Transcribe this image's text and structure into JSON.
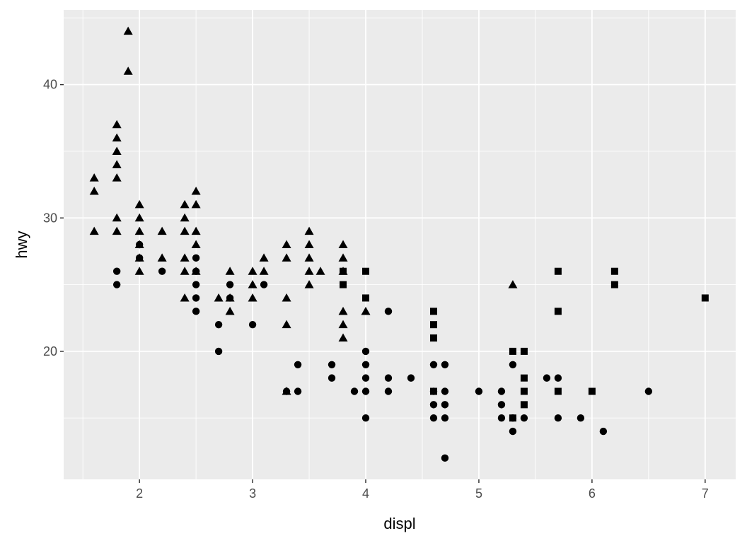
{
  "chart_data": {
    "type": "scatter",
    "title": "",
    "xlabel": "displ",
    "ylabel": "hwy",
    "xlim": [
      1.33,
      7.27
    ],
    "ylim": [
      10.4,
      45.6
    ],
    "x_ticks": [
      2,
      3,
      4,
      5,
      6,
      7
    ],
    "y_ticks": [
      20,
      30,
      40
    ],
    "grid": true,
    "legend": "none",
    "colors": {
      "panel": "#ebebeb",
      "grid": "#ffffff",
      "point": "#000000"
    },
    "shape_legend": {
      "circle": "4",
      "triangle": "f",
      "square": "r"
    },
    "series": [
      {
        "shape": "circle",
        "points": [
          [
            1.8,
            26
          ],
          [
            1.8,
            25
          ],
          [
            2.0,
            28
          ],
          [
            2.0,
            27
          ],
          [
            2.2,
            26
          ],
          [
            2.5,
            27
          ],
          [
            2.5,
            26
          ],
          [
            2.5,
            25
          ],
          [
            2.5,
            24
          ],
          [
            2.5,
            23
          ],
          [
            2.7,
            22
          ],
          [
            2.7,
            20
          ],
          [
            2.8,
            25
          ],
          [
            2.8,
            24
          ],
          [
            3.0,
            22
          ],
          [
            3.1,
            25
          ],
          [
            3.3,
            17
          ],
          [
            3.4,
            19
          ],
          [
            3.4,
            17
          ],
          [
            3.7,
            19
          ],
          [
            3.7,
            18
          ],
          [
            3.9,
            17
          ],
          [
            4.0,
            20
          ],
          [
            4.0,
            19
          ],
          [
            4.0,
            18
          ],
          [
            4.0,
            17
          ],
          [
            4.0,
            15
          ],
          [
            4.2,
            23
          ],
          [
            4.2,
            18
          ],
          [
            4.2,
            17
          ],
          [
            4.4,
            18
          ],
          [
            4.6,
            19
          ],
          [
            4.6,
            17
          ],
          [
            4.6,
            16
          ],
          [
            4.6,
            15
          ],
          [
            4.7,
            19
          ],
          [
            4.7,
            17
          ],
          [
            4.7,
            16
          ],
          [
            4.7,
            15
          ],
          [
            4.7,
            12
          ],
          [
            5.0,
            17
          ],
          [
            5.2,
            17
          ],
          [
            5.2,
            16
          ],
          [
            5.2,
            15
          ],
          [
            5.3,
            19
          ],
          [
            5.3,
            15
          ],
          [
            5.3,
            14
          ],
          [
            5.4,
            15
          ],
          [
            5.6,
            18
          ],
          [
            5.7,
            18
          ],
          [
            5.7,
            15
          ],
          [
            5.9,
            15
          ],
          [
            6.1,
            14
          ],
          [
            6.5,
            17
          ]
        ]
      },
      {
        "shape": "triangle",
        "points": [
          [
            1.6,
            33
          ],
          [
            1.6,
            32
          ],
          [
            1.6,
            29
          ],
          [
            1.8,
            37
          ],
          [
            1.8,
            36
          ],
          [
            1.8,
            35
          ],
          [
            1.8,
            34
          ],
          [
            1.8,
            33
          ],
          [
            1.8,
            30
          ],
          [
            1.8,
            29
          ],
          [
            1.9,
            44
          ],
          [
            1.9,
            41
          ],
          [
            2.0,
            31
          ],
          [
            2.0,
            30
          ],
          [
            2.0,
            29
          ],
          [
            2.0,
            28
          ],
          [
            2.0,
            27
          ],
          [
            2.0,
            26
          ],
          [
            2.2,
            29
          ],
          [
            2.2,
            27
          ],
          [
            2.4,
            31
          ],
          [
            2.4,
            30
          ],
          [
            2.4,
            29
          ],
          [
            2.4,
            27
          ],
          [
            2.4,
            26
          ],
          [
            2.4,
            24
          ],
          [
            2.5,
            32
          ],
          [
            2.5,
            31
          ],
          [
            2.5,
            29
          ],
          [
            2.5,
            28
          ],
          [
            2.5,
            26
          ],
          [
            2.7,
            24
          ],
          [
            2.8,
            26
          ],
          [
            2.8,
            24
          ],
          [
            2.8,
            23
          ],
          [
            3.0,
            26
          ],
          [
            3.0,
            25
          ],
          [
            3.0,
            24
          ],
          [
            3.1,
            27
          ],
          [
            3.1,
            26
          ],
          [
            3.3,
            28
          ],
          [
            3.3,
            27
          ],
          [
            3.3,
            24
          ],
          [
            3.3,
            22
          ],
          [
            3.3,
            17
          ],
          [
            3.5,
            29
          ],
          [
            3.5,
            28
          ],
          [
            3.5,
            27
          ],
          [
            3.5,
            26
          ],
          [
            3.5,
            25
          ],
          [
            3.6,
            26
          ],
          [
            3.8,
            28
          ],
          [
            3.8,
            27
          ],
          [
            3.8,
            26
          ],
          [
            3.8,
            23
          ],
          [
            3.8,
            22
          ],
          [
            3.8,
            21
          ],
          [
            4.0,
            23
          ],
          [
            5.3,
            25
          ]
        ]
      },
      {
        "shape": "square",
        "points": [
          [
            3.8,
            26
          ],
          [
            3.8,
            25
          ],
          [
            4.0,
            26
          ],
          [
            4.0,
            24
          ],
          [
            4.6,
            23
          ],
          [
            4.6,
            22
          ],
          [
            4.6,
            21
          ],
          [
            4.6,
            17
          ],
          [
            5.3,
            20
          ],
          [
            5.3,
            15
          ],
          [
            5.4,
            20
          ],
          [
            5.4,
            18
          ],
          [
            5.4,
            17
          ],
          [
            5.4,
            16
          ],
          [
            5.7,
            26
          ],
          [
            5.7,
            23
          ],
          [
            5.7,
            17
          ],
          [
            6.0,
            17
          ],
          [
            6.2,
            26
          ],
          [
            6.2,
            25
          ],
          [
            7.0,
            24
          ]
        ]
      }
    ]
  }
}
